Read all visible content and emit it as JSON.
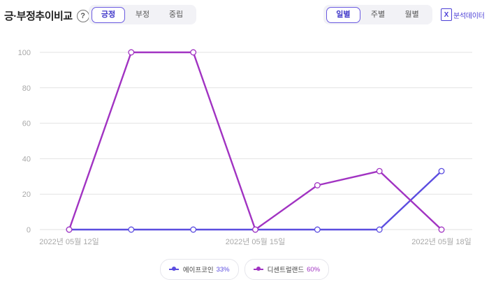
{
  "header": {
    "title": "긍·부정추이비교",
    "help_icon": "question-circle-icon",
    "excel_icon": "excel-icon",
    "excel_icon_glyph": "X",
    "excel_label": "분석데이터"
  },
  "sentiment_tabs": [
    {
      "label": "긍정",
      "active": true
    },
    {
      "label": "부정",
      "active": false
    },
    {
      "label": "중립",
      "active": false
    }
  ],
  "period_tabs": [
    {
      "label": "일별",
      "active": true
    },
    {
      "label": "주별",
      "active": false
    },
    {
      "label": "월별",
      "active": false
    }
  ],
  "colors": {
    "series_1": "#5b4de0",
    "series_2": "#a133c2",
    "grid": "#e2e2e2",
    "axis_text": "#a8a8a8",
    "accent": "#6a5ae0"
  },
  "chart_data": {
    "type": "line",
    "x": [
      "2022-05-12",
      "2022-05-13",
      "2022-05-14",
      "2022-05-15",
      "2022-05-16",
      "2022-05-17",
      "2022-05-18"
    ],
    "x_tick_labels": [
      "2022년 05월 12일",
      "2022년 05월 15일",
      "2022년 05월 18일"
    ],
    "x_tick_positions": [
      "2022-05-12",
      "2022-05-15",
      "2022-05-18"
    ],
    "y_ticks": [
      0,
      20,
      40,
      60,
      80,
      100
    ],
    "ylim": [
      0,
      100
    ],
    "grid": true,
    "legend_position": "bottom",
    "series": [
      {
        "name": "에이프코인",
        "percent_label": "33%",
        "values": [
          0,
          0,
          0,
          0,
          0,
          0,
          33
        ]
      },
      {
        "name": "디센트럴랜드",
        "percent_label": "60%",
        "values": [
          0,
          100,
          100,
          0,
          25,
          33,
          0
        ]
      }
    ]
  }
}
